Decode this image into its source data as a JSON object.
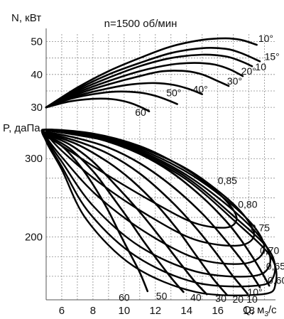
{
  "chart_data": {
    "type": "line",
    "title": "n=1500 об/мин",
    "xlabel": "Q, м³/с",
    "xlabel_text": "Q, м",
    "xlabel_sub": "3",
    "xlabel_tail": "/с",
    "xlim": [
      5,
      19.7
    ],
    "x_ticks": [
      "6",
      "8",
      "10",
      "12",
      "14",
      "16",
      "18"
    ],
    "x_tick_values": [
      6,
      8,
      10,
      12,
      14,
      16,
      18
    ],
    "grid": true,
    "power_chart": {
      "ylabel": "N, кВт",
      "ylim": [
        27,
        54
      ],
      "y_ticks": [
        "30",
        "40",
        "50"
      ],
      "y_tick_values": [
        30,
        40,
        50
      ],
      "series": [
        {
          "label": "10°",
          "x": [
            5,
            7,
            9,
            11,
            13,
            15,
            16.5,
            17.5,
            18.5
          ],
          "y": [
            30,
            36,
            41,
            45,
            48.5,
            50.5,
            51,
            50.5,
            49
          ]
        },
        {
          "label": "15°",
          "x": [
            5,
            7,
            9,
            11,
            13,
            15,
            16.5,
            17.5,
            18.7
          ],
          "y": [
            30,
            35.5,
            40,
            43.5,
            46.5,
            48,
            47.8,
            46.5,
            44
          ]
        },
        {
          "label": "10°",
          "x": [
            5,
            7,
            9,
            11,
            13,
            15,
            16.5,
            17.5,
            18.2
          ],
          "y": [
            30,
            35,
            39,
            42.5,
            45,
            46,
            45.5,
            44,
            42.5
          ]
        },
        {
          "label": "20°",
          "x": [
            5,
            7,
            9,
            11,
            13,
            14.5,
            15.8,
            16.8,
            17.6
          ],
          "y": [
            30,
            34.5,
            38,
            41,
            43,
            43.5,
            43,
            41.5,
            39.5
          ]
        },
        {
          "label": "30°",
          "x": [
            5,
            7,
            9,
            11,
            12.5,
            14,
            15,
            16,
            16.7
          ],
          "y": [
            30,
            34,
            37,
            39.5,
            41,
            41,
            40,
            38,
            36.5
          ]
        },
        {
          "label": "40°",
          "x": [
            5,
            7,
            9,
            10.5,
            12,
            13.2,
            14.2,
            15
          ],
          "y": [
            30,
            33.5,
            35.8,
            37,
            37.4,
            36.8,
            35.5,
            34
          ]
        },
        {
          "label": "50°",
          "x": [
            5,
            6.5,
            8,
            9.5,
            11,
            12,
            12.9,
            13.4
          ],
          "y": [
            30,
            32.5,
            34,
            34.8,
            34.5,
            33.5,
            32,
            31
          ]
        },
        {
          "label": "60°",
          "x": [
            5,
            6.5,
            8,
            9.2,
            10.3,
            11.1,
            11.6
          ],
          "y": [
            30,
            31.8,
            32.6,
            32.5,
            31.5,
            30,
            28.8
          ]
        }
      ],
      "labels": [
        {
          "text": "10°",
          "x": 18.6,
          "y": 51
        },
        {
          "text": "15°",
          "x": 19.0,
          "y": 45.5
        },
        {
          "text": "10",
          "x": 18.4,
          "y": 42.3
        },
        {
          "text": "20°",
          "x": 17.5,
          "y": 41.0
        },
        {
          "text": "30°",
          "x": 16.6,
          "y": 38.0
        },
        {
          "text": "40°",
          "x": 14.4,
          "y": 35.5
        },
        {
          "text": "50°",
          "x": 12.7,
          "y": 34.5
        },
        {
          "text": "60°",
          "x": 10.7,
          "y": 28.5
        }
      ]
    },
    "pressure_chart": {
      "ylabel": "P, даПа",
      "ylim": [
        120,
        350
      ],
      "y_ticks": [
        "200",
        "300"
      ],
      "y_tick_values": [
        200,
        300
      ],
      "series": [
        {
          "label": "10°",
          "x": [
            5,
            7,
            9,
            11,
            13,
            15,
            16.5,
            17.5,
            18.5,
            19.3
          ],
          "y": [
            336,
            330,
            322,
            306,
            283,
            251,
            221,
            196,
            166,
            138
          ]
        },
        {
          "label": "15°",
          "x": [
            5,
            7,
            9,
            11,
            13,
            15,
            16.5,
            17.7,
            18.7
          ],
          "y": [
            334,
            326,
            314,
            294,
            266,
            230,
            196,
            166,
            136
          ]
        },
        {
          "label": "20°",
          "x": [
            5,
            7,
            9,
            11,
            13,
            14.5,
            15.8,
            16.9,
            17.9
          ],
          "y": [
            333,
            322,
            306,
            281,
            246,
            214,
            182,
            152,
            128
          ]
        },
        {
          "label": "30°",
          "x": [
            5,
            7,
            9,
            10.5,
            12,
            13.4,
            14.6,
            15.7,
            16.6
          ],
          "y": [
            332,
            318,
            295,
            272,
            243,
            210,
            177,
            147,
            126
          ]
        },
        {
          "label": "40°",
          "x": [
            5,
            6.5,
            8,
            9.5,
            11,
            12.3,
            13.5,
            14.5,
            15.3
          ],
          "y": [
            331,
            318,
            296,
            265,
            232,
            200,
            169,
            144,
            127
          ]
        },
        {
          "label": "50°",
          "x": [
            5,
            6.5,
            8,
            9,
            10.2,
            11.2,
            12.2,
            13.1,
            13.8
          ],
          "y": [
            330,
            313,
            284,
            258,
            225,
            196,
            169,
            146,
            130
          ]
        },
        {
          "label": "60°",
          "x": [
            5,
            6,
            7,
            8,
            9,
            9.7,
            10.4,
            11,
            11.5
          ],
          "y": [
            328,
            316,
            295,
            267,
            233,
            205,
            178,
            155,
            131
          ]
        }
      ],
      "top_label": {
        "text": "10°",
        "x": 17.9,
        "y": 120
      },
      "bottom_labels": [
        {
          "text": "60",
          "x": 10.0,
          "y": 123
        },
        {
          "text": "50",
          "x": 12.4,
          "y": 125
        },
        {
          "text": "40",
          "x": 14.6,
          "y": 123
        },
        {
          "text": "30",
          "x": 16.2,
          "y": 122
        },
        {
          "text": "20",
          "x": 17.3,
          "y": 121
        },
        {
          "text": "10",
          "x": 18.2,
          "y": 121
        }
      ],
      "efficiency": [
        {
          "label": "0,85",
          "label_x": 16.0,
          "label_y": 272,
          "x": [
            5,
            8,
            11,
            13.5,
            15.5,
            16.8,
            17.2,
            16.5,
            14.5,
            12,
            9,
            6.5,
            5
          ],
          "y": [
            337,
            332,
            316,
            292,
            265,
            240,
            222,
            212,
            218,
            243,
            278,
            310,
            330
          ]
        },
        {
          "label": "0,80",
          "label_x": 17.3,
          "label_y": 242,
          "x": [
            5,
            8,
            11,
            14,
            16.5,
            17.9,
            18.3,
            17.2,
            14.5,
            11.5,
            8.5,
            6,
            5
          ],
          "y": [
            337,
            331,
            314,
            287,
            251,
            222,
            200,
            189,
            197,
            228,
            268,
            310,
            332
          ]
        },
        {
          "label": "0,75",
          "label_x": 18.1,
          "label_y": 212,
          "x": [
            5,
            8,
            11,
            14,
            16.8,
            18.6,
            18.9,
            17.6,
            14.6,
            11.3,
            8.2,
            6,
            5
          ],
          "y": [
            337,
            330,
            312,
            283,
            243,
            206,
            180,
            166,
            173,
            207,
            254,
            302,
            328
          ]
        },
        {
          "label": "0,70",
          "label_x": 18.7,
          "label_y": 183,
          "x": [
            5,
            8,
            11,
            14,
            17,
            19,
            19.3,
            18.1,
            14.6,
            11,
            8,
            6,
            5
          ],
          "y": [
            337,
            329,
            310,
            279,
            234,
            192,
            163,
            150,
            156,
            188,
            240,
            296,
            326
          ]
        },
        {
          "label": "0,65",
          "label_x": 19.1,
          "label_y": 163,
          "x": [
            5,
            8,
            11,
            14,
            17,
            19.3,
            19.6,
            18.5,
            14.6,
            10.8,
            7.8,
            6,
            5
          ],
          "y": [
            337,
            328,
            308,
            276,
            227,
            183,
            151,
            138,
            142,
            175,
            230,
            290,
            324
          ]
        },
        {
          "label": "0,60",
          "label_x": 19.2,
          "label_y": 145,
          "x": [
            5,
            8,
            11,
            14,
            17,
            19.4,
            19.7,
            18.8,
            14.6,
            10.6,
            7.6,
            6,
            5
          ],
          "y": [
            337,
            327,
            306,
            273,
            222,
            175,
            140,
            127,
            130,
            163,
            222,
            286,
            322
          ]
        }
      ]
    }
  }
}
